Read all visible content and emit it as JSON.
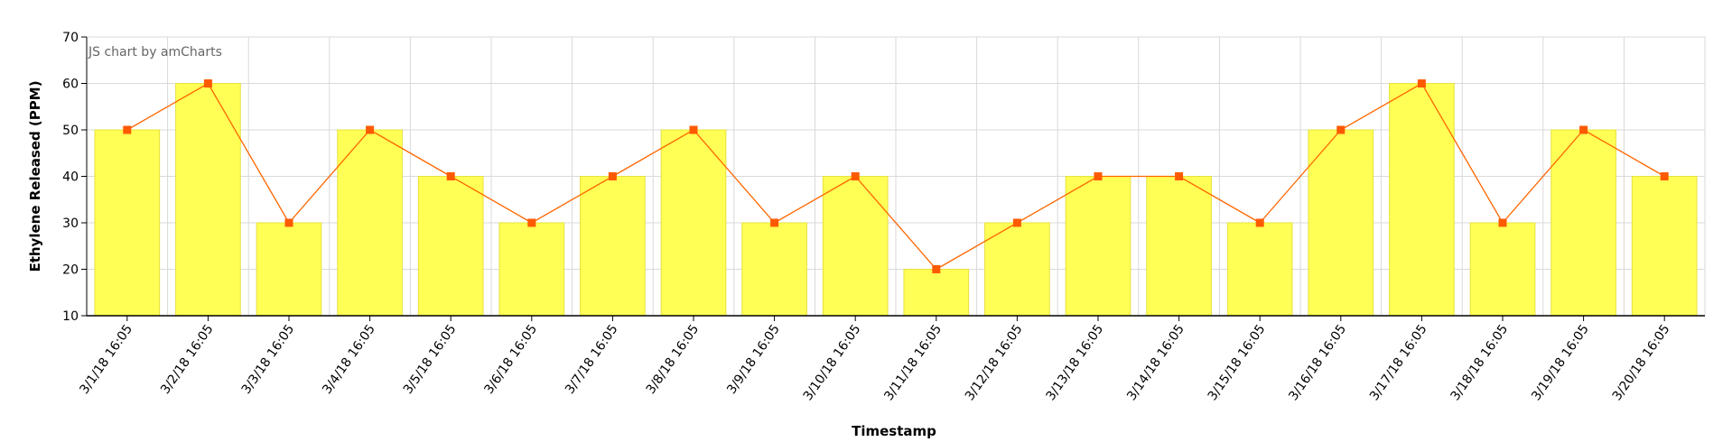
{
  "credit": "JS chart by amCharts",
  "colors": {
    "bar_fill": "#ffff55",
    "bar_stroke": "#e6e040",
    "line": "#ff6600",
    "marker": "#ff5a00",
    "grid": "#d9d9d9",
    "axis": "#000000"
  },
  "chart_data": {
    "type": "bar",
    "categories": [
      "3/1/18 16:05",
      "3/2/18 16:05",
      "3/3/18 16:05",
      "3/4/18 16:05",
      "3/5/18 16:05",
      "3/6/18 16:05",
      "3/7/18 16:05",
      "3/8/18 16:05",
      "3/9/18 16:05",
      "3/10/18 16:05",
      "3/11/18 16:05",
      "3/12/18 16:05",
      "3/13/18 16:05",
      "3/14/18 16:05",
      "3/15/18 16:05",
      "3/16/18 16:05",
      "3/17/18 16:05",
      "3/18/18 16:05",
      "3/19/18 16:05",
      "3/20/18 16:05"
    ],
    "series": [
      {
        "type": "bar",
        "values": [
          50,
          60,
          30,
          50,
          40,
          30,
          40,
          50,
          30,
          40,
          20,
          30,
          40,
          40,
          30,
          50,
          60,
          30,
          50,
          40
        ]
      },
      {
        "type": "line",
        "values": [
          50,
          60,
          30,
          50,
          40,
          30,
          40,
          50,
          30,
          40,
          20,
          30,
          40,
          40,
          30,
          50,
          60,
          30,
          50,
          40
        ]
      }
    ],
    "xlabel": "Timestamp",
    "ylabel": "Ethylene Released (PPM)",
    "ylim": [
      10,
      70
    ],
    "yticks": [
      10,
      20,
      30,
      40,
      50,
      60,
      70
    ],
    "grid": true,
    "legend": "none"
  }
}
